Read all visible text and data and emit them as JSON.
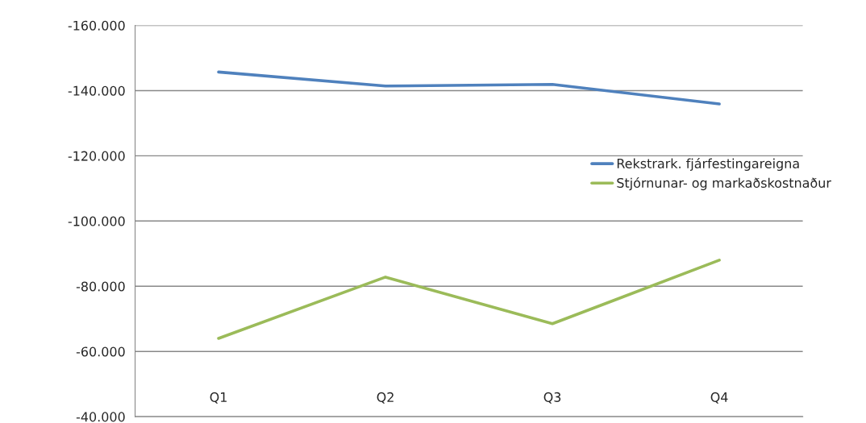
{
  "chart_data": {
    "type": "line",
    "categories": [
      "Q1",
      "Q2",
      "Q3",
      "Q4"
    ],
    "series": [
      {
        "name": "Rekstrark. fjárfestingareigna",
        "color": "#4f81bd",
        "values": [
          -145700,
          -141400,
          -141900,
          -135900
        ]
      },
      {
        "name": "Stjórnunar- og markaðskostnaður",
        "color": "#9bbb59",
        "values": [
          -64000,
          -82800,
          -68500,
          -88000
        ]
      }
    ],
    "ylim": [
      -40000,
      -160000
    ],
    "yticks": [
      {
        "value": -160000,
        "label": "-160.000"
      },
      {
        "value": -140000,
        "label": "-140.000"
      },
      {
        "value": -120000,
        "label": "-120.000"
      },
      {
        "value": -100000,
        "label": "-100.000"
      },
      {
        "value": -80000,
        "label": "-80.000"
      },
      {
        "value": -60000,
        "label": "-60.000"
      },
      {
        "value": -40000,
        "label": "-40.000"
      }
    ],
    "grid": "y",
    "legend": "right",
    "marker": "none",
    "line_style": "solid"
  }
}
